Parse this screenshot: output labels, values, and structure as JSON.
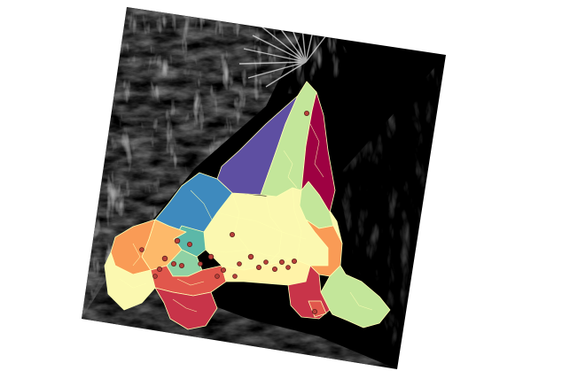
{
  "map": {
    "background_color": "#ffffff",
    "hillshade": {
      "base_color": "#000000",
      "relief_light": "#d9d9d9",
      "relief_mid": "#7a7a7a",
      "relief_dark": "#2b2b2b"
    },
    "boundary_color": "#ffffb3",
    "point_marker": {
      "fill": "#b8403a",
      "stroke": "#5a1f1b"
    },
    "palette": {
      "dark_red": "#9e0142",
      "crimson": "#c83449",
      "red_orange": "#e1574c",
      "orange": "#f99b56",
      "light_orange": "#fdb96a",
      "pale_yellow": "#fff3a8",
      "cream": "#fbf8b0",
      "light_green": "#c3e69a",
      "mint": "#8fd1a4",
      "teal": "#5cb8a8",
      "steel_blue": "#3e8abe",
      "purple": "#5e4fa2"
    }
  }
}
